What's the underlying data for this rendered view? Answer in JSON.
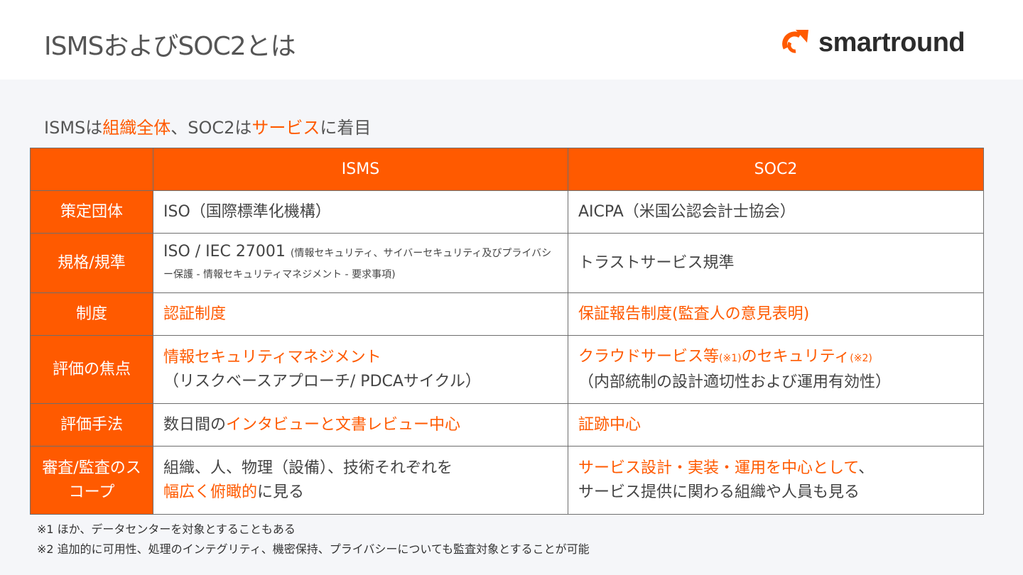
{
  "header": {
    "title": "ISMSおよびSOC2とは",
    "logo_text": "smartround",
    "brand_color": "#ff5a00"
  },
  "subtitle": [
    {
      "text": "ISMSは"
    },
    {
      "text": "組織全体",
      "hl": true
    },
    {
      "text": "、SOC2は"
    },
    {
      "text": "サービス",
      "hl": true
    },
    {
      "text": "に着目"
    }
  ],
  "table": {
    "columns": [
      "",
      "ISMS",
      "SOC2"
    ],
    "rows": [
      {
        "label": "策定団体",
        "isms": [
          {
            "text": "ISO（国際標準化機構）"
          }
        ],
        "soc2": [
          {
            "text": "AICPA（米国公認会計士協会）"
          }
        ]
      },
      {
        "label": "規格/規準",
        "isms": [
          {
            "text": "ISO / IEC 27001 "
          },
          {
            "text": "(情報セキュリティ、サイバーセキュリティ及びプライバシー保護 - 情報セキュリティマネジメント - 要求事項)",
            "small": true
          }
        ],
        "soc2": [
          {
            "text": "トラストサービス規準"
          }
        ]
      },
      {
        "label": "制度",
        "isms": [
          {
            "text": "認証制度",
            "hl": true
          }
        ],
        "soc2": [
          {
            "text": "保証報告制度(監査人の意見表明)",
            "hl": true
          }
        ]
      },
      {
        "label": "評価の焦点",
        "isms": [
          {
            "text": "情報セキュリティマネジメント",
            "hl": true,
            "br": true
          },
          {
            "text": "（リスクベースアプローチ/ PDCAサイクル）"
          }
        ],
        "soc2": [
          {
            "text": "クラウドサービス等",
            "hl": true
          },
          {
            "text": "(※1)",
            "hl": true,
            "small": true
          },
          {
            "text": "のセキュリティ",
            "hl": true
          },
          {
            "text": "(※2)",
            "hl": true,
            "small": true,
            "br": true
          },
          {
            "text": "（内部統制の設計適切性および運用有効性）"
          }
        ]
      },
      {
        "label": "評価手法",
        "isms": [
          {
            "text": "数日間の"
          },
          {
            "text": "インタビューと文書レビュー中心",
            "hl": true
          }
        ],
        "soc2": [
          {
            "text": "証跡中心",
            "hl": true
          }
        ]
      },
      {
        "label": "審査/監査のスコープ",
        "isms": [
          {
            "text": "組織、人、物理（設備）、技術それぞれを",
            "br": true
          },
          {
            "text": "幅広く俯瞰的",
            "hl": true
          },
          {
            "text": "に見る"
          }
        ],
        "soc2": [
          {
            "text": "サービス設計・実装・運用を中心として",
            "hl": true
          },
          {
            "text": "、",
            "br": true
          },
          {
            "text": "サービス提供に関わる組織や人員も見る"
          }
        ]
      }
    ]
  },
  "notes": [
    "※1 ほか、データセンターを対象とすることもある",
    "※2 追加的に可用性、処理のインテグリティ、機密保持、プライバシーについても監査対象とすることが可能"
  ]
}
